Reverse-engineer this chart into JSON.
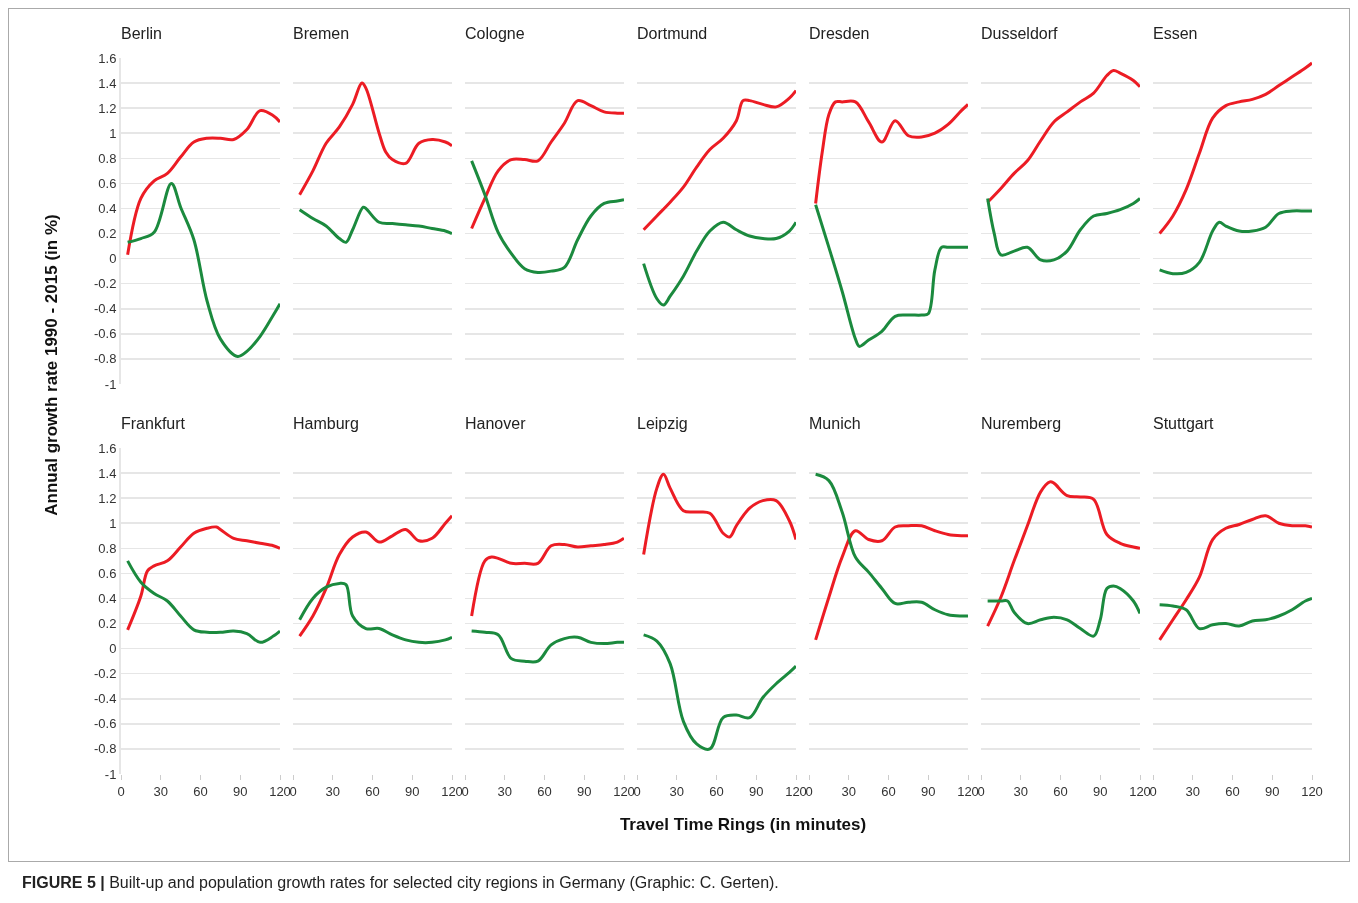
{
  "chart_data": [
    {
      "type": "line",
      "title": "Berlin",
      "ylabel": "Annual growth rate 1990 - 2015 (in %)",
      "annotations": [
        "FIGURE 5 | Built-up and population growth rates for selected city regions in Germany (Graphic: C. Gerten)."
      ],
      "xlim": [
        0,
        120
      ],
      "xticks": [
        0,
        30,
        60,
        90,
        120
      ],
      "ylim": [
        -1,
        1.6
      ],
      "yticks": [
        -1,
        -0.8,
        -0.6,
        -0.4,
        -0.2,
        0,
        0.2,
        0.4,
        0.6,
        0.8,
        1,
        1.2,
        1.4,
        1.6
      ],
      "grid": "y",
      "tick_labels": "y",
      "series": [
        {
          "color": "#ec1c24",
          "x": [
            5,
            15,
            25,
            35,
            45,
            55,
            65,
            75,
            85,
            95,
            105,
            115,
            120
          ],
          "values": [
            0.03,
            0.48,
            0.62,
            0.68,
            0.81,
            0.93,
            0.96,
            0.96,
            0.95,
            1.03,
            1.18,
            1.14,
            1.09
          ]
        },
        {
          "color": "#1b8a3e",
          "x": [
            5,
            15,
            25,
            38,
            45,
            55,
            65,
            75,
            88,
            95,
            105,
            115,
            120
          ],
          "values": [
            0.13,
            0.16,
            0.21,
            0.6,
            0.41,
            0.15,
            -0.34,
            -0.64,
            -0.78,
            -0.74,
            -0.62,
            -0.45,
            -0.36
          ]
        }
      ]
    },
    {
      "type": "line",
      "title": "Bremen",
      "xlim": [
        0,
        120
      ],
      "xticks": [
        0,
        30,
        60,
        90,
        120
      ],
      "ylim": [
        -1,
        1.6
      ],
      "yticks": [
        -1,
        -0.8,
        -0.6,
        -0.4,
        -0.2,
        0,
        0.2,
        0.4,
        0.6,
        0.8,
        1,
        1.2,
        1.4,
        1.6
      ],
      "grid": "y",
      "tick_labels": false,
      "series": [
        {
          "color": "#ec1c24",
          "x": [
            5,
            15,
            25,
            35,
            45,
            52,
            55,
            65,
            70,
            75,
            85,
            95,
            105,
            115,
            120
          ],
          "values": [
            0.51,
            0.7,
            0.92,
            1.05,
            1.23,
            1.4,
            1.36,
            1.0,
            0.85,
            0.79,
            0.76,
            0.92,
            0.95,
            0.93,
            0.9
          ]
        },
        {
          "color": "#1b8a3e",
          "x": [
            5,
            15,
            25,
            35,
            40,
            45,
            53,
            55,
            65,
            75,
            85,
            95,
            105,
            115,
            120
          ],
          "values": [
            0.39,
            0.32,
            0.26,
            0.16,
            0.13,
            0.23,
            0.41,
            0.4,
            0.29,
            0.28,
            0.27,
            0.26,
            0.24,
            0.22,
            0.2
          ]
        }
      ]
    },
    {
      "type": "line",
      "title": "Cologne",
      "xlim": [
        0,
        120
      ],
      "xticks": [
        0,
        30,
        60,
        90,
        120
      ],
      "ylim": [
        -1,
        1.6
      ],
      "yticks": [
        -1,
        -0.8,
        -0.6,
        -0.4,
        -0.2,
        0,
        0.2,
        0.4,
        0.6,
        0.8,
        1,
        1.2,
        1.4,
        1.6
      ],
      "grid": "y",
      "tick_labels": false,
      "series": [
        {
          "color": "#ec1c24",
          "x": [
            5,
            15,
            25,
            35,
            45,
            55,
            65,
            75,
            85,
            95,
            105,
            115,
            120
          ],
          "values": [
            0.24,
            0.48,
            0.7,
            0.79,
            0.79,
            0.78,
            0.93,
            1.08,
            1.26,
            1.22,
            1.17,
            1.16,
            1.16
          ]
        },
        {
          "color": "#1b8a3e",
          "x": [
            5,
            15,
            25,
            35,
            45,
            55,
            65,
            75,
            85,
            95,
            105,
            115,
            120
          ],
          "values": [
            0.78,
            0.51,
            0.21,
            0.04,
            -0.08,
            -0.11,
            -0.1,
            -0.07,
            0.15,
            0.34,
            0.44,
            0.46,
            0.47
          ]
        }
      ]
    },
    {
      "type": "line",
      "title": "Dortmund",
      "xlim": [
        0,
        120
      ],
      "xticks": [
        0,
        30,
        60,
        90,
        120
      ],
      "ylim": [
        -1,
        1.6
      ],
      "yticks": [
        -1,
        -0.8,
        -0.6,
        -0.4,
        -0.2,
        0,
        0.2,
        0.4,
        0.6,
        0.8,
        1,
        1.2,
        1.4,
        1.6
      ],
      "grid": "y",
      "tick_labels": false,
      "series": [
        {
          "color": "#ec1c24",
          "x": [
            5,
            15,
            25,
            35,
            45,
            55,
            65,
            75,
            80,
            85,
            95,
            105,
            115,
            120
          ],
          "values": [
            0.23,
            0.34,
            0.45,
            0.57,
            0.73,
            0.87,
            0.96,
            1.1,
            1.26,
            1.26,
            1.23,
            1.21,
            1.28,
            1.34
          ]
        },
        {
          "color": "#1b8a3e",
          "x": [
            5,
            15,
            20,
            25,
            35,
            45,
            55,
            65,
            75,
            85,
            95,
            105,
            115,
            120
          ],
          "values": [
            -0.04,
            -0.32,
            -0.37,
            -0.3,
            -0.14,
            0.06,
            0.22,
            0.29,
            0.23,
            0.18,
            0.16,
            0.16,
            0.22,
            0.29
          ]
        }
      ]
    },
    {
      "type": "line",
      "title": "Dresden",
      "xlim": [
        0,
        120
      ],
      "xticks": [
        0,
        30,
        60,
        90,
        120
      ],
      "ylim": [
        -1,
        1.6
      ],
      "yticks": [
        -1,
        -0.8,
        -0.6,
        -0.4,
        -0.2,
        0,
        0.2,
        0.4,
        0.6,
        0.8,
        1,
        1.2,
        1.4,
        1.6
      ],
      "grid": "y",
      "tick_labels": false,
      "series": [
        {
          "color": "#ec1c24",
          "x": [
            5,
            10,
            15,
            20,
            25,
            35,
            45,
            55,
            65,
            75,
            85,
            95,
            105,
            115,
            120
          ],
          "values": [
            0.44,
            0.85,
            1.15,
            1.25,
            1.25,
            1.25,
            1.09,
            0.93,
            1.1,
            0.98,
            0.97,
            1.0,
            1.07,
            1.18,
            1.23
          ]
        },
        {
          "color": "#1b8a3e",
          "x": [
            5,
            15,
            25,
            35,
            38,
            45,
            55,
            65,
            75,
            85,
            90,
            95,
            100,
            105,
            115,
            120
          ],
          "values": [
            0.43,
            0.09,
            -0.26,
            -0.64,
            -0.7,
            -0.65,
            -0.58,
            -0.46,
            -0.45,
            -0.45,
            -0.44,
            -0.09,
            0.09,
            0.09,
            0.09,
            0.09
          ]
        }
      ]
    },
    {
      "type": "line",
      "title": "Dusseldorf",
      "xlim": [
        0,
        120
      ],
      "xticks": [
        0,
        30,
        60,
        90,
        120
      ],
      "ylim": [
        -1,
        1.6
      ],
      "yticks": [
        -1,
        -0.8,
        -0.6,
        -0.4,
        -0.2,
        0,
        0.2,
        0.4,
        0.6,
        0.8,
        1,
        1.2,
        1.4,
        1.6
      ],
      "grid": "y",
      "tick_labels": false,
      "series": [
        {
          "color": "#ec1c24",
          "x": [
            5,
            15,
            25,
            35,
            45,
            55,
            65,
            75,
            85,
            95,
            100,
            105,
            115,
            120
          ],
          "values": [
            0.45,
            0.56,
            0.68,
            0.78,
            0.94,
            1.09,
            1.17,
            1.25,
            1.32,
            1.46,
            1.5,
            1.48,
            1.42,
            1.37
          ]
        },
        {
          "color": "#1b8a3e",
          "x": [
            5,
            10,
            15,
            25,
            35,
            45,
            55,
            65,
            75,
            85,
            95,
            105,
            115,
            120
          ],
          "values": [
            0.48,
            0.2,
            0.03,
            0.06,
            0.09,
            -0.01,
            -0.01,
            0.06,
            0.23,
            0.34,
            0.36,
            0.39,
            0.44,
            0.48
          ]
        }
      ]
    },
    {
      "type": "line",
      "title": "Essen",
      "xlim": [
        0,
        120
      ],
      "xticks": [
        0,
        30,
        60,
        90,
        120
      ],
      "ylim": [
        -1,
        1.6
      ],
      "yticks": [
        -1,
        -0.8,
        -0.6,
        -0.4,
        -0.2,
        0,
        0.2,
        0.4,
        0.6,
        0.8,
        1,
        1.2,
        1.4,
        1.6
      ],
      "grid": "y",
      "tick_labels": false,
      "series": [
        {
          "color": "#ec1c24",
          "x": [
            5,
            15,
            25,
            35,
            45,
            55,
            65,
            75,
            85,
            95,
            105,
            115,
            120
          ],
          "values": [
            0.2,
            0.34,
            0.55,
            0.84,
            1.12,
            1.22,
            1.25,
            1.27,
            1.31,
            1.38,
            1.45,
            1.52,
            1.56
          ]
        },
        {
          "color": "#1b8a3e",
          "x": [
            5,
            15,
            25,
            35,
            45,
            50,
            55,
            65,
            75,
            85,
            95,
            105,
            115,
            120
          ],
          "values": [
            -0.09,
            -0.12,
            -0.11,
            -0.03,
            0.22,
            0.29,
            0.26,
            0.22,
            0.22,
            0.25,
            0.36,
            0.38,
            0.38,
            0.38
          ]
        }
      ]
    },
    {
      "type": "line",
      "title": "Frankfurt",
      "xlim": [
        0,
        120
      ],
      "xticks": [
        0,
        30,
        60,
        90,
        120
      ],
      "ylim": [
        -1,
        1.6
      ],
      "yticks": [
        -1,
        -0.8,
        -0.6,
        -0.4,
        -0.2,
        0,
        0.2,
        0.4,
        0.6,
        0.8,
        1,
        1.2,
        1.4,
        1.6
      ],
      "grid": "y",
      "series": [
        {
          "color": "#ec1c24",
          "x": [
            5,
            15,
            20,
            25,
            35,
            45,
            55,
            65,
            72,
            75,
            85,
            95,
            105,
            115,
            120
          ],
          "values": [
            0.15,
            0.42,
            0.62,
            0.66,
            0.7,
            0.81,
            0.92,
            0.96,
            0.97,
            0.95,
            0.88,
            0.86,
            0.84,
            0.82,
            0.8
          ]
        },
        {
          "color": "#1b8a3e",
          "x": [
            5,
            15,
            25,
            35,
            45,
            55,
            65,
            75,
            85,
            95,
            105,
            115,
            120
          ],
          "values": [
            0.7,
            0.53,
            0.44,
            0.38,
            0.26,
            0.15,
            0.13,
            0.13,
            0.14,
            0.12,
            0.05,
            0.1,
            0.14
          ]
        }
      ]
    },
    {
      "type": "line",
      "title": "Hamburg",
      "xlim": [
        0,
        120
      ],
      "xticks": [
        0,
        30,
        60,
        90,
        120
      ],
      "ylim": [
        -1,
        1.6
      ],
      "yticks": [
        -1,
        -0.8,
        -0.6,
        -0.4,
        -0.2,
        0,
        0.2,
        0.4,
        0.6,
        0.8,
        1,
        1.2,
        1.4,
        1.6
      ],
      "grid": "y",
      "tick_labels": "x",
      "series": [
        {
          "color": "#ec1c24",
          "x": [
            5,
            15,
            25,
            35,
            45,
            55,
            65,
            75,
            85,
            95,
            105,
            115,
            120
          ],
          "values": [
            0.1,
            0.26,
            0.48,
            0.75,
            0.89,
            0.93,
            0.85,
            0.9,
            0.95,
            0.86,
            0.88,
            1.0,
            1.06
          ]
        },
        {
          "color": "#1b8a3e",
          "x": [
            5,
            15,
            25,
            35,
            40,
            45,
            55,
            65,
            75,
            85,
            95,
            105,
            115,
            120
          ],
          "values": [
            0.23,
            0.4,
            0.49,
            0.52,
            0.51,
            0.26,
            0.16,
            0.16,
            0.11,
            0.07,
            0.05,
            0.05,
            0.07,
            0.09
          ]
        }
      ]
    },
    {
      "type": "line",
      "title": "Hanover",
      "xlim": [
        0,
        120
      ],
      "xticks": [
        0,
        30,
        60,
        90,
        120
      ],
      "ylim": [
        -1,
        1.6
      ],
      "yticks": [
        -1,
        -0.8,
        -0.6,
        -0.4,
        -0.2,
        0,
        0.2,
        0.4,
        0.6,
        0.8,
        1,
        1.2,
        1.4,
        1.6
      ],
      "grid": "y",
      "tick_labels": "x",
      "series": [
        {
          "color": "#ec1c24",
          "x": [
            5,
            15,
            20,
            25,
            35,
            45,
            55,
            65,
            75,
            85,
            95,
            105,
            115,
            120
          ],
          "values": [
            0.26,
            0.7,
            0.73,
            0.72,
            0.68,
            0.68,
            0.68,
            0.82,
            0.83,
            0.81,
            0.82,
            0.83,
            0.85,
            0.88
          ]
        },
        {
          "color": "#1b8a3e",
          "x": [
            5,
            15,
            25,
            35,
            45,
            55,
            65,
            75,
            85,
            95,
            105,
            115,
            120
          ],
          "values": [
            0.14,
            0.13,
            0.11,
            -0.08,
            -0.1,
            -0.1,
            0.03,
            0.08,
            0.09,
            0.05,
            0.04,
            0.05,
            0.05
          ]
        }
      ]
    },
    {
      "type": "line",
      "title": "Leipzig",
      "xlabel": "Travel Time Rings (in minutes)",
      "xlim": [
        0,
        120
      ],
      "xticks": [
        0,
        30,
        60,
        90,
        120
      ],
      "ylim": [
        -1,
        1.6
      ],
      "yticks": [
        -1,
        -0.8,
        -0.6,
        -0.4,
        -0.2,
        0,
        0.2,
        0.4,
        0.6,
        0.8,
        1,
        1.2,
        1.4,
        1.6
      ],
      "grid": "y",
      "tick_labels": "x",
      "series": [
        {
          "color": "#ec1c24",
          "x": [
            5,
            15,
            20,
            25,
            35,
            45,
            55,
            65,
            70,
            75,
            85,
            95,
            105,
            115,
            120
          ],
          "values": [
            0.75,
            1.28,
            1.39,
            1.28,
            1.1,
            1.09,
            1.08,
            0.92,
            0.89,
            0.98,
            1.12,
            1.18,
            1.18,
            1.02,
            0.87
          ]
        },
        {
          "color": "#1b8a3e",
          "x": [
            5,
            15,
            25,
            35,
            45,
            55,
            65,
            75,
            85,
            95,
            105,
            115,
            120
          ],
          "values": [
            0.11,
            0.06,
            -0.12,
            -0.58,
            -0.76,
            -0.8,
            -0.55,
            -0.53,
            -0.55,
            -0.39,
            -0.28,
            -0.19,
            -0.14
          ]
        }
      ]
    },
    {
      "type": "line",
      "title": "Munich",
      "xlim": [
        0,
        120
      ],
      "xticks": [
        0,
        30,
        60,
        90,
        120
      ],
      "ylim": [
        -1,
        1.6
      ],
      "yticks": [
        -1,
        -0.8,
        -0.6,
        -0.4,
        -0.2,
        0,
        0.2,
        0.4,
        0.6,
        0.8,
        1,
        1.2,
        1.4,
        1.6
      ],
      "grid": "y",
      "tick_labels": "x",
      "series": [
        {
          "color": "#ec1c24",
          "x": [
            5,
            15,
            25,
            35,
            45,
            55,
            65,
            75,
            85,
            95,
            105,
            115,
            120
          ],
          "values": [
            0.07,
            0.41,
            0.73,
            0.94,
            0.87,
            0.86,
            0.97,
            0.98,
            0.98,
            0.94,
            0.91,
            0.9,
            0.9
          ]
        },
        {
          "color": "#1b8a3e",
          "x": [
            5,
            15,
            25,
            35,
            45,
            55,
            65,
            75,
            85,
            95,
            105,
            115,
            120
          ],
          "values": [
            1.39,
            1.34,
            1.09,
            0.73,
            0.61,
            0.48,
            0.36,
            0.37,
            0.37,
            0.31,
            0.27,
            0.26,
            0.26
          ]
        }
      ]
    },
    {
      "type": "line",
      "title": "Nuremberg",
      "xlim": [
        0,
        120
      ],
      "xticks": [
        0,
        30,
        60,
        90,
        120
      ],
      "ylim": [
        -1,
        1.6
      ],
      "yticks": [
        -1,
        -0.8,
        -0.6,
        -0.4,
        -0.2,
        0,
        0.2,
        0.4,
        0.6,
        0.8,
        1,
        1.2,
        1.4,
        1.6
      ],
      "grid": "y",
      "tick_labels": "x",
      "series": [
        {
          "color": "#ec1c24",
          "x": [
            5,
            15,
            25,
            35,
            45,
            52,
            55,
            65,
            75,
            85,
            95,
            105,
            115,
            120
          ],
          "values": [
            0.18,
            0.41,
            0.7,
            0.98,
            1.25,
            1.33,
            1.32,
            1.22,
            1.21,
            1.19,
            0.91,
            0.84,
            0.81,
            0.8
          ]
        },
        {
          "color": "#1b8a3e",
          "x": [
            5,
            15,
            20,
            25,
            35,
            45,
            55,
            65,
            75,
            85,
            90,
            95,
            100,
            105,
            115,
            120
          ],
          "values": [
            0.38,
            0.38,
            0.38,
            0.29,
            0.2,
            0.23,
            0.25,
            0.23,
            0.16,
            0.1,
            0.23,
            0.48,
            0.5,
            0.48,
            0.38,
            0.28
          ]
        }
      ]
    },
    {
      "type": "line",
      "title": "Stuttgart",
      "xlim": [
        0,
        120
      ],
      "xticks": [
        0,
        30,
        60,
        90,
        120
      ],
      "ylim": [
        -1,
        1.6
      ],
      "yticks": [
        -1,
        -0.8,
        -0.6,
        -0.4,
        -0.2,
        0,
        0.2,
        0.4,
        0.6,
        0.8,
        1,
        1.2,
        1.4,
        1.6
      ],
      "grid": "y",
      "tick_labels": "x",
      "series": [
        {
          "color": "#ec1c24",
          "x": [
            5,
            15,
            25,
            35,
            45,
            55,
            65,
            75,
            85,
            95,
            105,
            115,
            120
          ],
          "values": [
            0.07,
            0.23,
            0.39,
            0.57,
            0.87,
            0.96,
            0.99,
            1.03,
            1.06,
            1.0,
            0.98,
            0.98,
            0.97
          ]
        },
        {
          "color": "#1b8a3e",
          "x": [
            5,
            15,
            25,
            35,
            45,
            55,
            65,
            75,
            85,
            95,
            105,
            115,
            120
          ],
          "values": [
            0.35,
            0.34,
            0.31,
            0.16,
            0.19,
            0.2,
            0.18,
            0.22,
            0.23,
            0.26,
            0.31,
            0.38,
            0.4
          ]
        }
      ]
    }
  ]
}
